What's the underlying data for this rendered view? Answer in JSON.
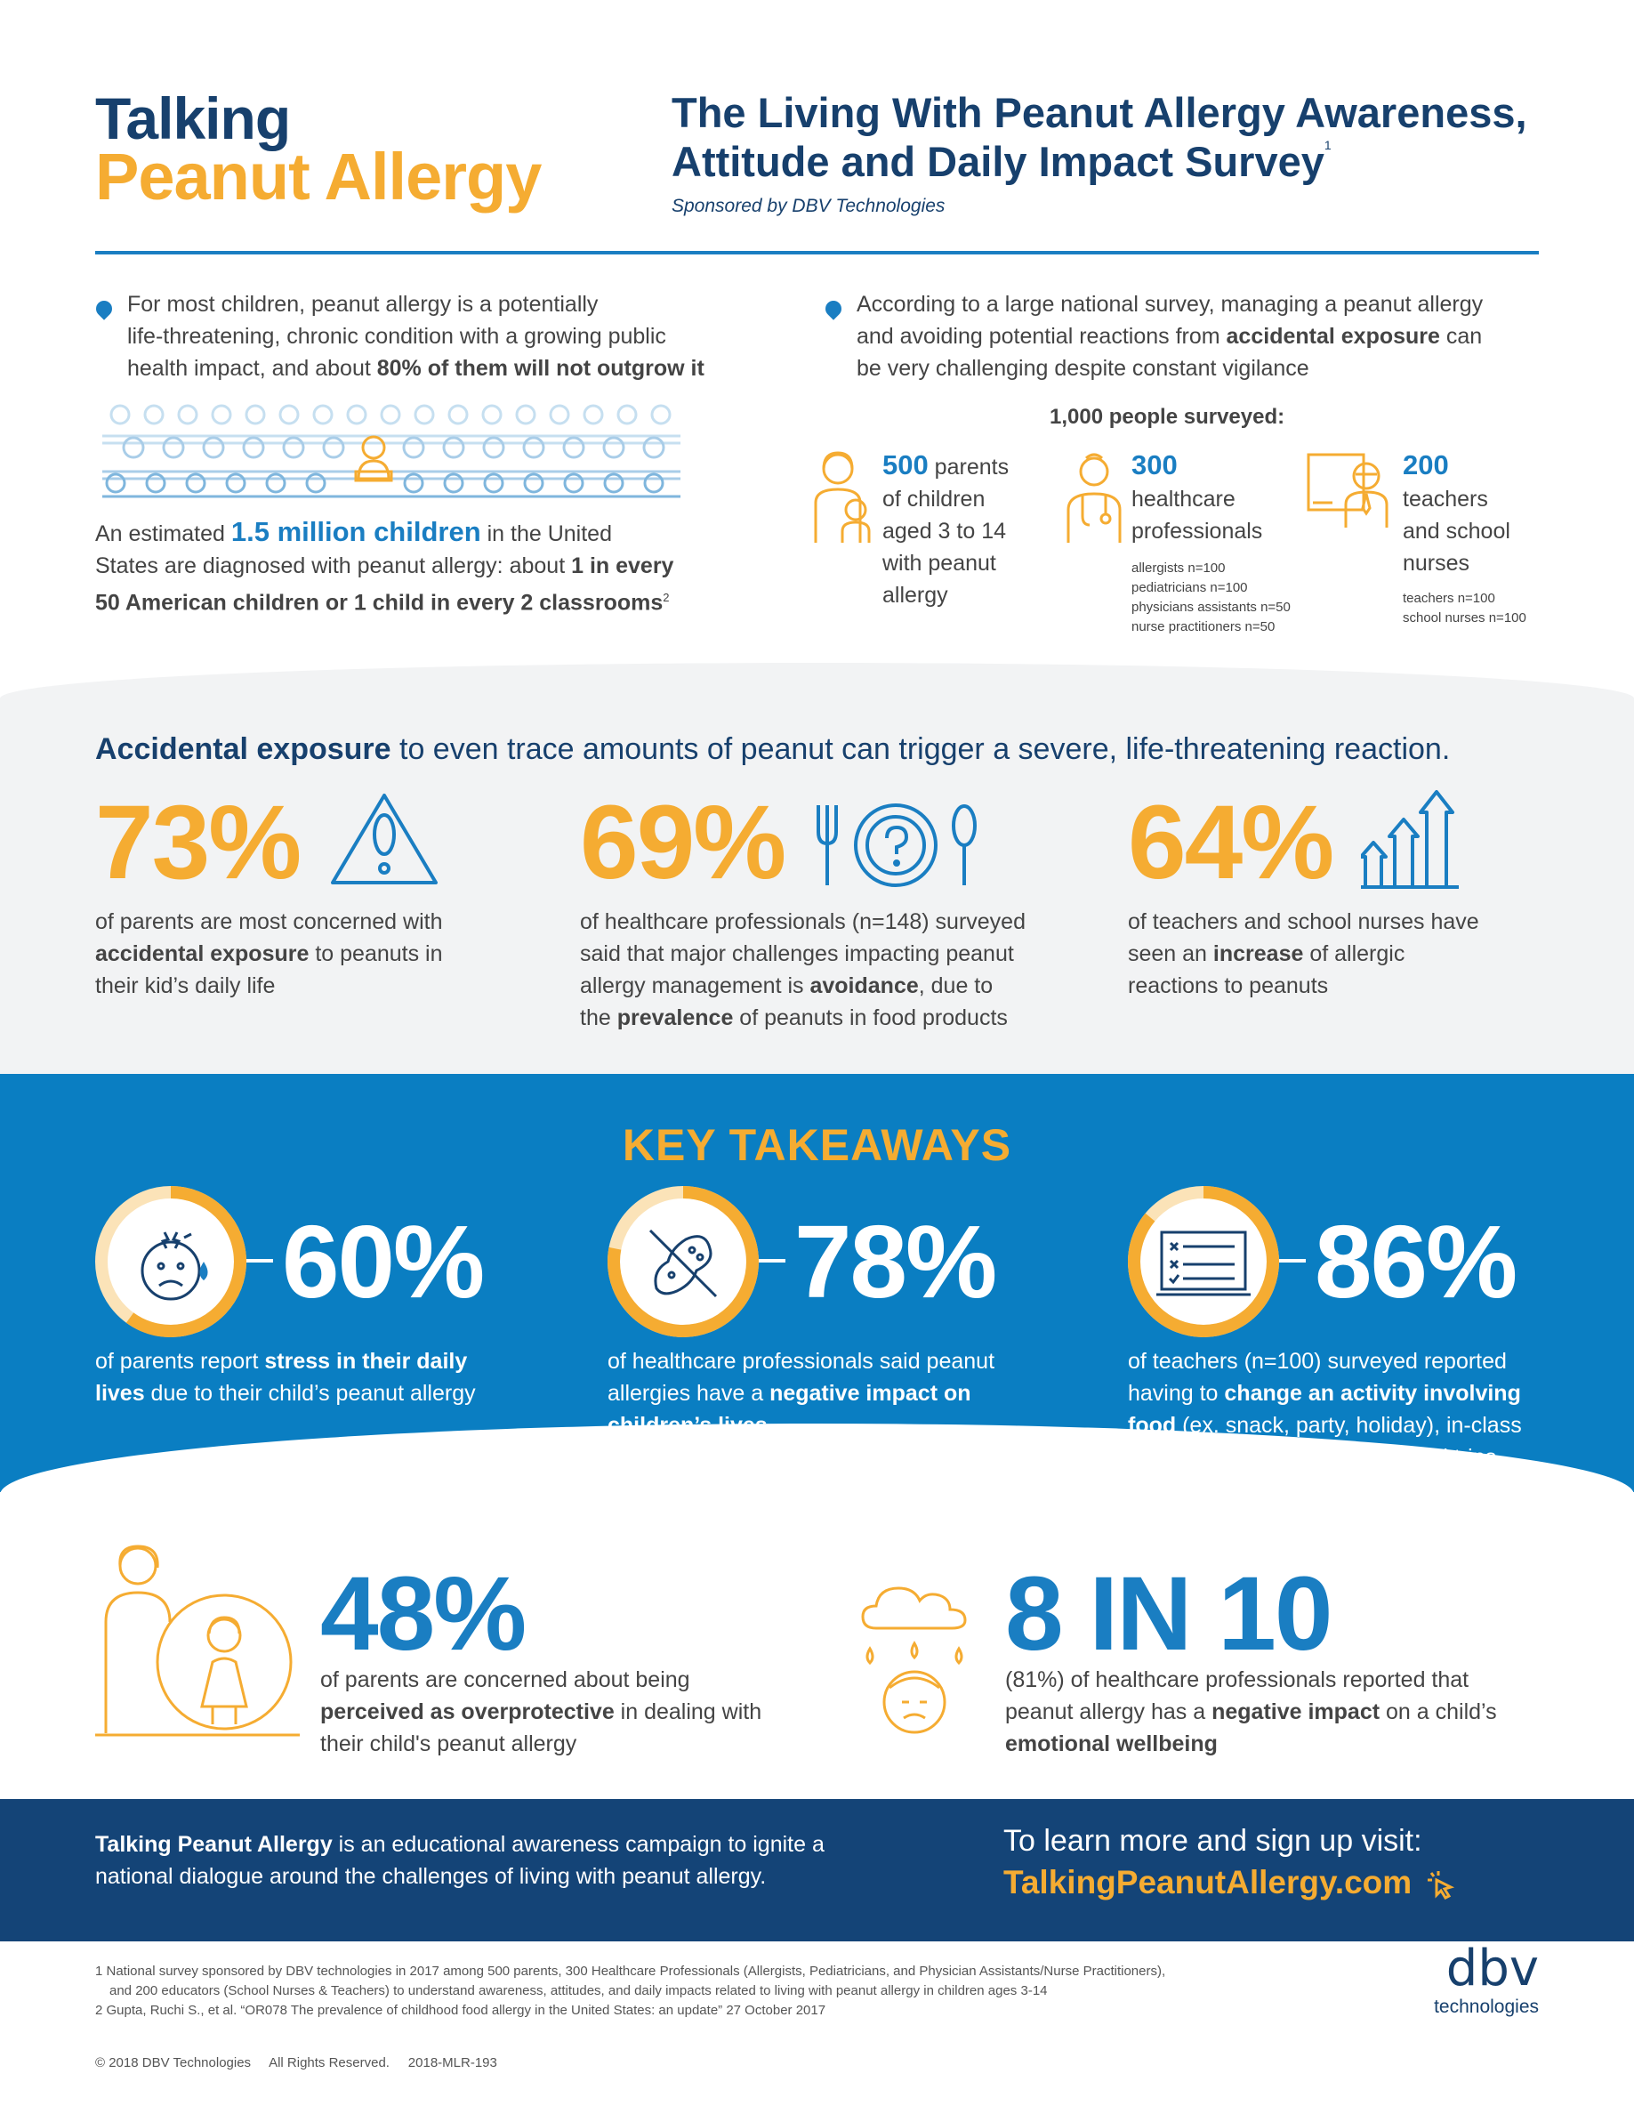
{
  "header": {
    "logo_line1": "Talking",
    "logo_line2": "Peanut Allergy",
    "title_line1": "The Living With Peanut Allergy Awareness,",
    "title_line2": "Attitude and Daily Impact Survey",
    "title_sup": "1",
    "sponsor": "Sponsored by DBV Technologies"
  },
  "intro_left": {
    "p1": "For most children, peanut allergy is a potentially",
    "p2": "life-threatening, chronic condition with a growing public",
    "p3a": "health impact, and about ",
    "p3b": "80% of them will not outgrow it",
    "est_a": "An estimated ",
    "est_b": "1.5 million children",
    "est_c": " in the United",
    "est_d": "States are diagnosed with peanut allergy: about ",
    "est_e": "1 in every",
    "est_f": "50 American children or 1 child in every 2 classrooms",
    "est_sup": "2"
  },
  "intro_right": {
    "p1": "According to a large national survey, managing a peanut allergy",
    "p2a": "and avoiding potential reactions from ",
    "p2b": "accidental exposure",
    "p2c": " can",
    "p3": "be very challenging despite constant vigilance",
    "surveyed": "1,000 people surveyed:",
    "groups": [
      {
        "num": "500",
        "l1": " parents",
        "l2": "of children",
        "l3": "aged 3 to 14",
        "l4": "with peanut",
        "l5": "allergy"
      },
      {
        "num": "300",
        "l1": "healthcare",
        "l2": "professionals",
        "d1": "allergists n=100",
        "d2": "pediatricians n=100",
        "d3": "physicians assistants n=50",
        "d4": "nurse practitioners n=50"
      },
      {
        "num": "200",
        "l1": "teachers",
        "l2": "and school",
        "l3": "nurses",
        "d1": "teachers n=100",
        "d2": "school nurses n=100"
      }
    ]
  },
  "accidental": {
    "head_b": "Accidental exposure",
    "head_r": " to even trace amounts of peanut can trigger a severe, life-threatening reaction.",
    "stats": [
      {
        "pct": "73%",
        "l1": "of parents are most concerned with",
        "l2b": "accidental exposure",
        "l2r": " to peanuts in",
        "l3": "their kid’s daily life"
      },
      {
        "pct": "69%",
        "l1": "of healthcare professionals (n=148) surveyed",
        "l2": "said that major challenges impacting peanut",
        "l3a": "allergy management is ",
        "l3b": "avoidance",
        "l3c": ", due to",
        "l4a": "the ",
        "l4b": "prevalence",
        "l4c": " of peanuts in food products"
      },
      {
        "pct": "64%",
        "l1": "of teachers and school nurses have",
        "l2a": "seen an ",
        "l2b": "increase",
        "l2c": " of allergic",
        "l3": "reactions to peanuts"
      }
    ]
  },
  "key_takeaways": {
    "title": "KEY TAKEAWAYS",
    "items": [
      {
        "pct": "60%",
        "fill": 0.6,
        "l1a": "of parents report ",
        "l1b": "stress in their daily",
        "l2b": "lives",
        "l2r": " due to their child’s peanut allergy"
      },
      {
        "pct": "78%",
        "fill": 0.78,
        "l1": "of healthcare professionals said peanut",
        "l2a": "allergies have a ",
        "l2b": "negative impact on",
        "l3b": "children’s lives"
      },
      {
        "pct": "86%",
        "fill": 0.86,
        "l1": "of teachers (n=100) surveyed reported",
        "l2a": "having to ",
        "l2b": "change an activity involving",
        "l3b": "food",
        "l3r": " (ex. snack, party, holiday), in-class",
        "l4": "lessons/activities, and class/field trips"
      }
    ]
  },
  "bottom_stats": {
    "s48": {
      "pct": "48%",
      "l1": "of parents are concerned about being",
      "l2b": "perceived as overprotective",
      "l2r": " in dealing with",
      "l3": "their child's peanut allergy"
    },
    "s810": {
      "pct": "8 IN 10",
      "l1": "(81%) of healthcare professionals reported that",
      "l2a": "peanut allergy has a ",
      "l2b": "negative impact",
      "l2c": " on a child’s",
      "l3b": "emotional wellbeing"
    }
  },
  "footer": {
    "l1b": "Talking Peanut Allergy",
    "l1r": " is an educational awareness campaign to ignite a",
    "l2": "national dialogue around the challenges of living with peanut allergy.",
    "cta": "To learn more and sign up visit:",
    "url": "TalkingPeanutAllergy.com"
  },
  "footnotes": {
    "n1a": "1  National survey sponsored by DBV technologies in 2017 among 500 parents, 300 Healthcare Professionals (Allergists, Pediatricians, and Physician Assistants/Nurse Practitioners),",
    "n1b": "and 200 educators (School Nurses & Teachers) to understand awareness, attitudes, and daily impacts related to living with peanut allergy in children ages 3-14",
    "n2": "2 Gupta, Ruchi S., et al. “OR078 The prevalence of childhood food allergy in the United States: an update” 27 October 2017",
    "copyright": "© 2018 DBV Technologies     All Rights Reserved.     2018-MLR-193",
    "brand1": "dbv",
    "brand2": "technologies"
  },
  "colors": {
    "navy": "#17406d",
    "blue": "#1a7ec2",
    "gold": "#f5ac32",
    "band": "#0a7ec2",
    "footer": "#144477"
  }
}
